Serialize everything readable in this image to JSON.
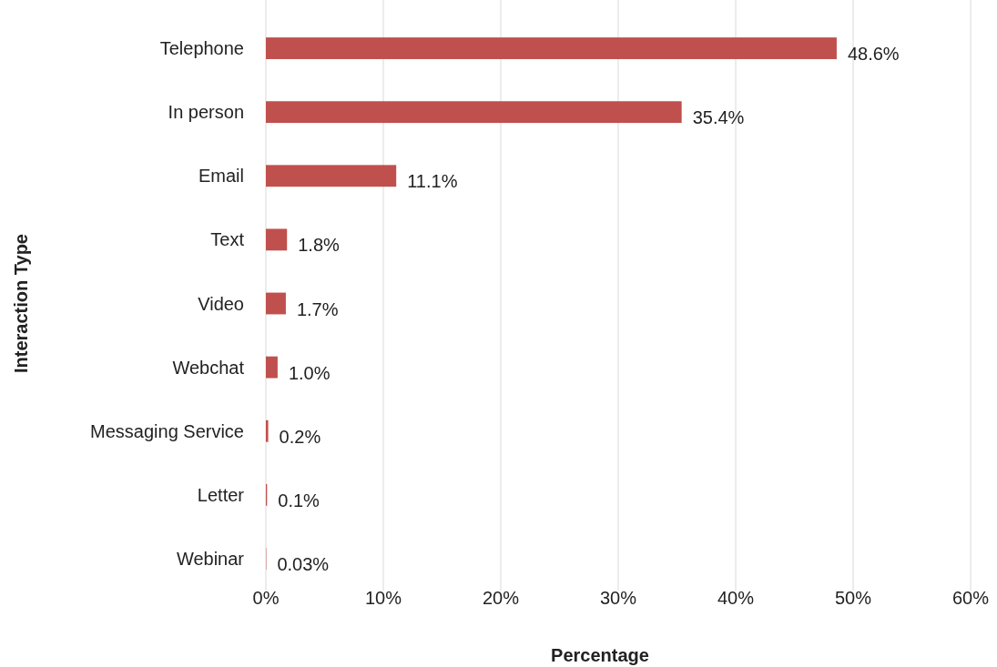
{
  "chart_data": {
    "type": "bar",
    "orientation": "horizontal",
    "xlabel": "Percentage",
    "ylabel": "Interaction Type",
    "categories": [
      "Telephone",
      "In person",
      "Email",
      "Text",
      "Video",
      "Webchat",
      "Messaging Service",
      "Letter",
      "Webinar"
    ],
    "values": [
      48.6,
      35.4,
      11.1,
      1.8,
      1.7,
      1.0,
      0.2,
      0.1,
      0.03
    ],
    "value_labels": [
      "48.6%",
      "35.4%",
      "11.1%",
      "1.8%",
      "1.7%",
      "1.0%",
      "0.2%",
      "0.1%",
      "0.03%"
    ],
    "color": "#c0504d",
    "xlim": [
      0,
      60
    ],
    "xticks": [
      {
        "value": 0,
        "label": "0%"
      },
      {
        "value": 10,
        "label": "10%"
      },
      {
        "value": 20,
        "label": "20%"
      },
      {
        "value": 30,
        "label": "30%"
      },
      {
        "value": 40,
        "label": "40%"
      },
      {
        "value": 50,
        "label": "50%"
      },
      {
        "value": 60,
        "label": "60%"
      }
    ],
    "grid": "x"
  }
}
